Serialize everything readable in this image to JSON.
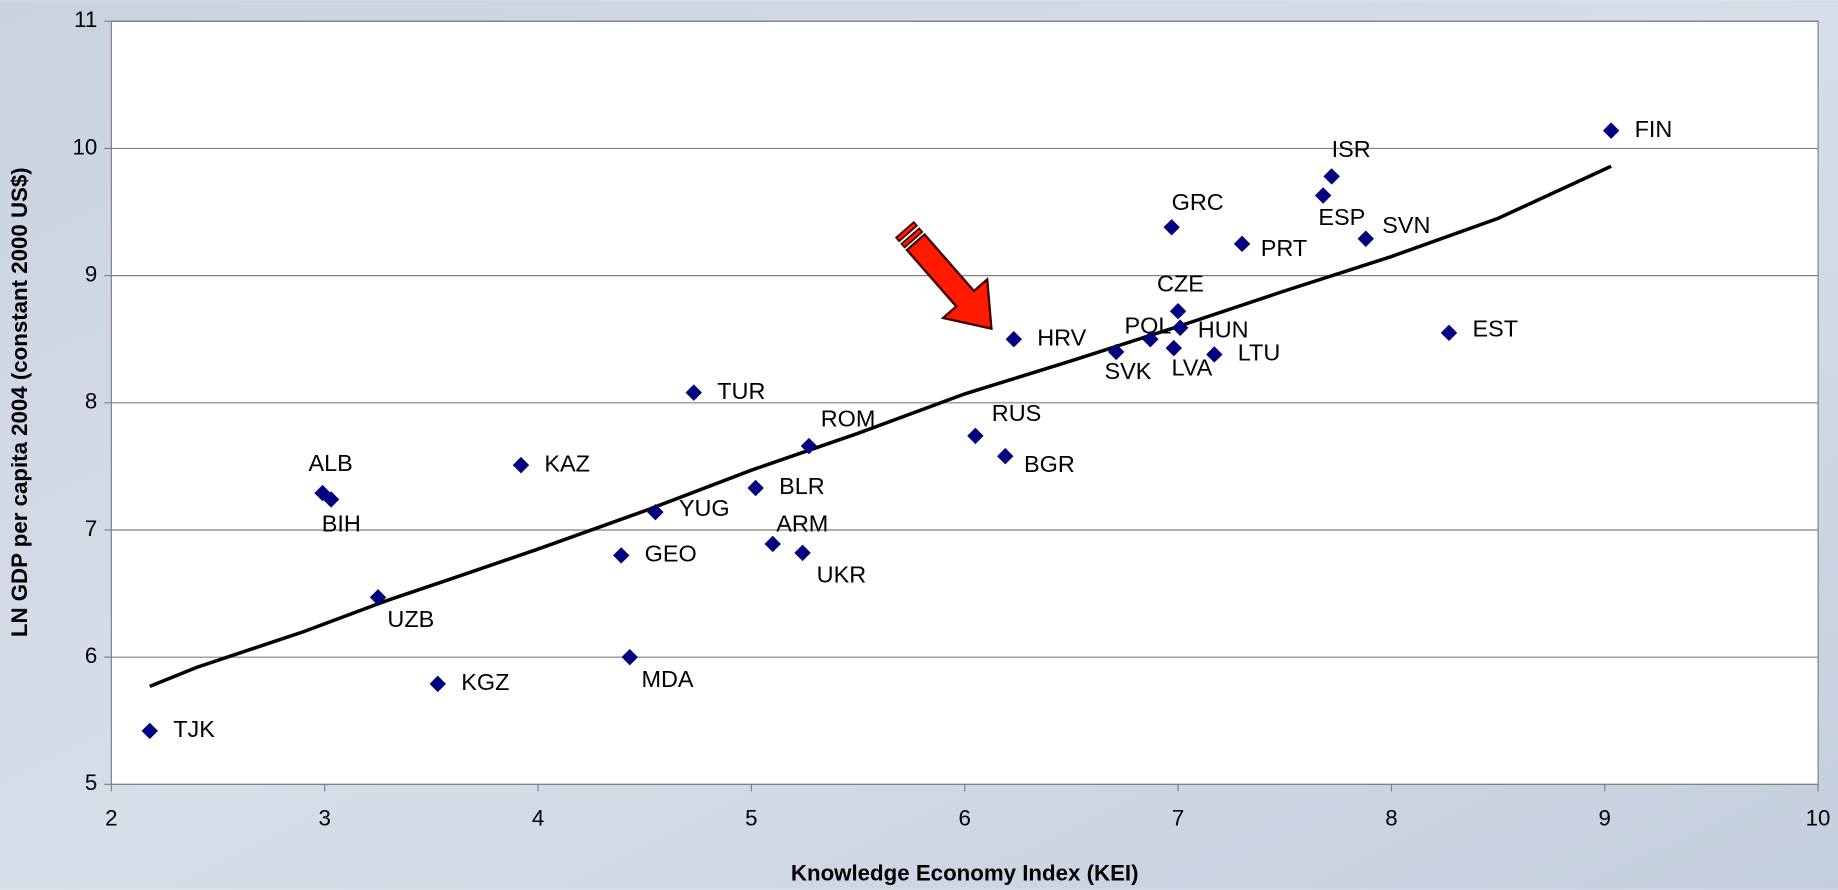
{
  "chart_data": {
    "type": "scatter",
    "x_label": "Knowledge Economy Index (KEI)",
    "y_label": "LN GDP per capita 2004 (constant 2000 US$)",
    "xlim": [
      2,
      10
    ],
    "ylim": [
      5,
      11
    ],
    "xticks": [
      2,
      3,
      4,
      5,
      6,
      7,
      8,
      9,
      10
    ],
    "yticks": [
      5,
      6,
      7,
      8,
      9,
      10,
      11
    ],
    "grid": true,
    "series": [
      {
        "color": "#000080",
        "labels": [
          "TJK",
          "KGZ",
          "UZB",
          "ALB",
          "BIH",
          "KAZ",
          "TUR",
          "GEO",
          "MDA",
          "YUG",
          "BLR",
          "ARM",
          "UKR",
          "ROM",
          "RUS",
          "BGR",
          "HRV",
          "SVK",
          "POL",
          "CZE",
          "HUN",
          "LVA",
          "LTU",
          "GRC",
          "PRT",
          "ESP",
          "ISR",
          "SVN",
          "EST",
          "FIN"
        ],
        "x": [
          2.18,
          3.53,
          3.25,
          2.99,
          3.03,
          3.92,
          4.73,
          4.39,
          4.43,
          4.55,
          5.02,
          5.1,
          5.24,
          5.27,
          6.05,
          6.19,
          6.23,
          6.71,
          6.87,
          7.0,
          7.01,
          6.98,
          7.17,
          6.97,
          7.3,
          7.68,
          7.72,
          7.88,
          8.27,
          9.03
        ],
        "values": [
          5.42,
          5.79,
          6.47,
          7.29,
          7.24,
          7.51,
          8.08,
          6.8,
          6.0,
          7.14,
          7.33,
          6.89,
          6.82,
          7.66,
          7.74,
          7.58,
          8.5,
          8.4,
          8.5,
          8.72,
          8.59,
          8.43,
          8.38,
          9.38,
          9.25,
          9.63,
          9.78,
          9.29,
          8.55,
          10.14
        ]
      }
    ],
    "trend_line": {
      "color": "#000000",
      "x": [
        2.18,
        2.4,
        2.9,
        3.3,
        3.6,
        4.0,
        4.5,
        5.0,
        5.5,
        6.0,
        6.5,
        7.0,
        7.5,
        8.0,
        8.5,
        9.03
      ],
      "values": [
        5.77,
        5.92,
        6.2,
        6.45,
        6.62,
        6.85,
        7.15,
        7.47,
        7.76,
        8.07,
        8.33,
        8.6,
        8.88,
        9.15,
        9.45,
        9.86
      ]
    }
  }
}
